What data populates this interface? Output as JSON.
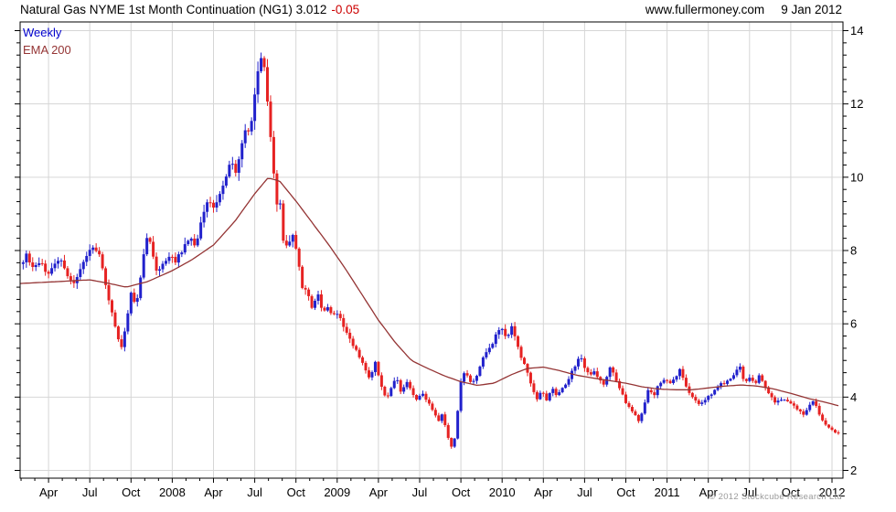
{
  "header": {
    "title": "Natural Gas NYME 1st Month Continuation (NG1) 3.012",
    "change": "-0.05",
    "website": "www.fullermoney.com",
    "date": "9 Jan 2012"
  },
  "legend": {
    "frequency_label": "Weekly",
    "overlay_label": "EMA 200"
  },
  "footer": {
    "copyright": "© 2012 Stockcube Research Ltd"
  },
  "chart_data": {
    "type": "candlestick",
    "title": "Natural Gas NYME 1st Month Continuation (NG1)",
    "frequency": "Weekly",
    "overlay": "EMA 200",
    "last_close": 3.012,
    "change": -0.05,
    "as_of_date": "9 Jan 2012",
    "peak_price": 13.69,
    "low_price": 2.4,
    "y_axis": {
      "side": "right",
      "min": 1.8,
      "max": 14.25,
      "major_ticks": [
        2,
        4,
        6,
        8,
        10,
        12,
        14
      ],
      "minor_tick_step": 0.3333
    },
    "x_axis": {
      "start_decimal_year": 2007.077,
      "end_decimal_year": 2012.046,
      "tick_labels": [
        "Apr",
        "Jul",
        "Oct",
        "2008",
        "Apr",
        "Jul",
        "Oct",
        "2009",
        "Apr",
        "Jul",
        "Oct",
        "2010",
        "Apr",
        "Jul",
        "Oct",
        "2011",
        "Apr",
        "Jul",
        "Oct",
        "2012"
      ],
      "first_labeled_tick": 2007.25,
      "labeled_tick_step_years": 0.25,
      "minor_ticks": "monthly"
    },
    "grid": {
      "horizontal": "major_only",
      "vertical": "quarterly",
      "color": "#d6d6d6"
    },
    "colors": {
      "up_candle": "#2121cc",
      "down_candle": "#e62222",
      "ema_line": "#943434",
      "axis": "#000000",
      "change_text": "#cc0000",
      "legend_weekly": "#0000cc",
      "copyright_text": "#9a9a9a",
      "background": "#ffffff"
    },
    "close_keypoints": [
      [
        2007.08,
        7.6
      ],
      [
        2007.12,
        7.9
      ],
      [
        2007.16,
        7.45
      ],
      [
        2007.2,
        7.75
      ],
      [
        2007.24,
        7.25
      ],
      [
        2007.28,
        7.6
      ],
      [
        2007.32,
        7.85
      ],
      [
        2007.36,
        7.3
      ],
      [
        2007.4,
        7.05
      ],
      [
        2007.44,
        7.5
      ],
      [
        2007.48,
        7.8
      ],
      [
        2007.52,
        8.15
      ],
      [
        2007.56,
        7.85
      ],
      [
        2007.6,
        7.0
      ],
      [
        2007.63,
        6.4
      ],
      [
        2007.66,
        5.8
      ],
      [
        2007.69,
        5.35
      ],
      [
        2007.72,
        6.0
      ],
      [
        2007.75,
        6.85
      ],
      [
        2007.78,
        6.4
      ],
      [
        2007.81,
        7.3
      ],
      [
        2007.84,
        8.45
      ],
      [
        2007.87,
        8.2
      ],
      [
        2007.9,
        7.4
      ],
      [
        2007.94,
        7.65
      ],
      [
        2007.98,
        7.85
      ],
      [
        2008.02,
        7.7
      ],
      [
        2008.06,
        8.0
      ],
      [
        2008.1,
        8.35
      ],
      [
        2008.14,
        8.15
      ],
      [
        2008.18,
        8.85
      ],
      [
        2008.22,
        9.35
      ],
      [
        2008.26,
        9.15
      ],
      [
        2008.3,
        9.7
      ],
      [
        2008.33,
        10.05
      ],
      [
        2008.36,
        10.45
      ],
      [
        2008.39,
        10.1
      ],
      [
        2008.42,
        10.8
      ],
      [
        2008.45,
        11.35
      ],
      [
        2008.47,
        11.1
      ],
      [
        2008.49,
        11.85
      ],
      [
        2008.51,
        12.55
      ],
      [
        2008.53,
        13.2
      ],
      [
        2008.55,
        13.55
      ],
      [
        2008.57,
        12.2
      ],
      [
        2008.59,
        11.55
      ],
      [
        2008.61,
        10.35
      ],
      [
        2008.63,
        9.2
      ],
      [
        2008.65,
        9.6
      ],
      [
        2008.67,
        8.35
      ],
      [
        2008.7,
        8.05
      ],
      [
        2008.73,
        8.45
      ],
      [
        2008.76,
        7.85
      ],
      [
        2008.79,
        6.95
      ],
      [
        2008.82,
        6.85
      ],
      [
        2008.85,
        6.35
      ],
      [
        2008.88,
        6.9
      ],
      [
        2008.91,
        6.3
      ],
      [
        2008.94,
        6.45
      ],
      [
        2008.97,
        6.2
      ],
      [
        2009.0,
        6.3
      ],
      [
        2009.04,
        5.95
      ],
      [
        2009.08,
        5.55
      ],
      [
        2009.12,
        5.25
      ],
      [
        2009.16,
        4.85
      ],
      [
        2009.2,
        4.45
      ],
      [
        2009.23,
        5.0
      ],
      [
        2009.26,
        4.35
      ],
      [
        2009.3,
        3.95
      ],
      [
        2009.33,
        4.3
      ],
      [
        2009.36,
        4.5
      ],
      [
        2009.39,
        4.1
      ],
      [
        2009.42,
        4.4
      ],
      [
        2009.45,
        4.2
      ],
      [
        2009.48,
        3.9
      ],
      [
        2009.51,
        4.15
      ],
      [
        2009.54,
        3.95
      ],
      [
        2009.57,
        3.7
      ],
      [
        2009.6,
        3.5
      ],
      [
        2009.62,
        3.3
      ],
      [
        2009.64,
        3.6
      ],
      [
        2009.66,
        3.1
      ],
      [
        2009.68,
        2.8
      ],
      [
        2009.7,
        2.55
      ],
      [
        2009.72,
        3.1
      ],
      [
        2009.74,
        4.1
      ],
      [
        2009.76,
        4.7
      ],
      [
        2009.79,
        4.55
      ],
      [
        2009.82,
        4.35
      ],
      [
        2009.85,
        4.6
      ],
      [
        2009.88,
        5.0
      ],
      [
        2009.91,
        5.3
      ],
      [
        2009.94,
        5.45
      ],
      [
        2009.97,
        5.75
      ],
      [
        2010.0,
        5.85
      ],
      [
        2010.03,
        5.6
      ],
      [
        2010.06,
        5.95
      ],
      [
        2010.09,
        5.45
      ],
      [
        2010.12,
        5.05
      ],
      [
        2010.15,
        4.75
      ],
      [
        2010.18,
        4.3
      ],
      [
        2010.21,
        3.95
      ],
      [
        2010.24,
        4.15
      ],
      [
        2010.27,
        3.9
      ],
      [
        2010.3,
        4.25
      ],
      [
        2010.33,
        4.05
      ],
      [
        2010.36,
        4.2
      ],
      [
        2010.39,
        4.35
      ],
      [
        2010.42,
        4.65
      ],
      [
        2010.45,
        4.95
      ],
      [
        2010.47,
        5.15
      ],
      [
        2010.5,
        4.8
      ],
      [
        2010.53,
        4.6
      ],
      [
        2010.56,
        4.75
      ],
      [
        2010.59,
        4.45
      ],
      [
        2010.62,
        4.3
      ],
      [
        2010.65,
        4.85
      ],
      [
        2010.68,
        4.6
      ],
      [
        2010.71,
        4.25
      ],
      [
        2010.74,
        3.95
      ],
      [
        2010.77,
        3.7
      ],
      [
        2010.8,
        3.55
      ],
      [
        2010.83,
        3.35
      ],
      [
        2010.86,
        3.75
      ],
      [
        2010.89,
        4.25
      ],
      [
        2010.92,
        4.05
      ],
      [
        2010.95,
        4.35
      ],
      [
        2010.98,
        4.45
      ],
      [
        2011.02,
        4.4
      ],
      [
        2011.05,
        4.5
      ],
      [
        2011.08,
        4.8
      ],
      [
        2011.11,
        4.35
      ],
      [
        2011.14,
        4.05
      ],
      [
        2011.17,
        3.9
      ],
      [
        2011.2,
        3.8
      ],
      [
        2011.24,
        3.95
      ],
      [
        2011.28,
        4.15
      ],
      [
        2011.32,
        4.35
      ],
      [
        2011.36,
        4.4
      ],
      [
        2011.4,
        4.55
      ],
      [
        2011.44,
        4.85
      ],
      [
        2011.47,
        4.4
      ],
      [
        2011.5,
        4.55
      ],
      [
        2011.53,
        4.35
      ],
      [
        2011.56,
        4.6
      ],
      [
        2011.59,
        4.35
      ],
      [
        2011.62,
        4.1
      ],
      [
        2011.65,
        3.85
      ],
      [
        2011.68,
        3.95
      ],
      [
        2011.71,
        3.9
      ],
      [
        2011.74,
        3.85
      ],
      [
        2011.77,
        3.75
      ],
      [
        2011.8,
        3.65
      ],
      [
        2011.83,
        3.5
      ],
      [
        2011.86,
        3.75
      ],
      [
        2011.89,
        3.95
      ],
      [
        2011.92,
        3.55
      ],
      [
        2011.95,
        3.3
      ],
      [
        2011.98,
        3.15
      ],
      [
        2012.01,
        3.05
      ],
      [
        2012.04,
        3.012
      ]
    ],
    "ema_keypoints": [
      [
        2007.08,
        7.1
      ],
      [
        2007.3,
        7.15
      ],
      [
        2007.5,
        7.2
      ],
      [
        2007.62,
        7.1
      ],
      [
        2007.72,
        7.0
      ],
      [
        2007.85,
        7.15
      ],
      [
        2008.0,
        7.45
      ],
      [
        2008.12,
        7.75
      ],
      [
        2008.25,
        8.15
      ],
      [
        2008.38,
        8.8
      ],
      [
        2008.5,
        9.55
      ],
      [
        2008.58,
        9.98
      ],
      [
        2008.65,
        9.9
      ],
      [
        2008.75,
        9.35
      ],
      [
        2008.85,
        8.75
      ],
      [
        2008.95,
        8.15
      ],
      [
        2009.05,
        7.5
      ],
      [
        2009.15,
        6.8
      ],
      [
        2009.25,
        6.1
      ],
      [
        2009.35,
        5.5
      ],
      [
        2009.45,
        5.0
      ],
      [
        2009.55,
        4.78
      ],
      [
        2009.65,
        4.58
      ],
      [
        2009.75,
        4.42
      ],
      [
        2009.85,
        4.32
      ],
      [
        2009.95,
        4.38
      ],
      [
        2010.05,
        4.6
      ],
      [
        2010.15,
        4.78
      ],
      [
        2010.25,
        4.82
      ],
      [
        2010.35,
        4.72
      ],
      [
        2010.45,
        4.6
      ],
      [
        2010.55,
        4.52
      ],
      [
        2010.65,
        4.45
      ],
      [
        2010.75,
        4.38
      ],
      [
        2010.85,
        4.28
      ],
      [
        2010.95,
        4.22
      ],
      [
        2011.05,
        4.2
      ],
      [
        2011.15,
        4.2
      ],
      [
        2011.25,
        4.25
      ],
      [
        2011.35,
        4.3
      ],
      [
        2011.45,
        4.33
      ],
      [
        2011.55,
        4.3
      ],
      [
        2011.65,
        4.22
      ],
      [
        2011.75,
        4.1
      ],
      [
        2011.85,
        3.97
      ],
      [
        2011.95,
        3.87
      ],
      [
        2012.05,
        3.75
      ]
    ]
  }
}
